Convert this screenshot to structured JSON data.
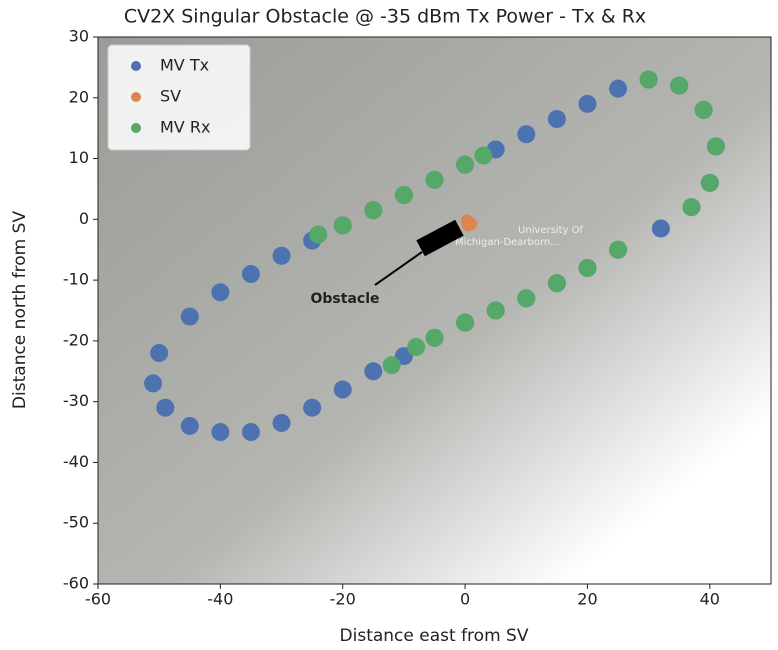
{
  "chart_data": {
    "type": "scatter",
    "title": "CV2X Singular Obstacle @ -35 dBm Tx Power - Tx & Rx",
    "x_label": "Distance east from SV",
    "y_label": "Distance north from SV",
    "annotation": "Obstacle",
    "background_labels": [
      "University Of",
      "Michigan-Dearborn..."
    ],
    "xlim": [
      -60,
      50
    ],
    "xticks": [
      -60,
      -40,
      -20,
      0,
      20,
      40
    ],
    "ylim": [
      -60,
      30
    ],
    "yticks": [
      -60,
      -50,
      -40,
      -30,
      -20,
      -10,
      0,
      10,
      20,
      30
    ],
    "legend": "upper left",
    "series": [
      {
        "name": "MV Tx",
        "color": "#4c72b0",
        "x": [
          -50,
          -45,
          -40,
          -35,
          -30,
          -25,
          -20,
          -15,
          -10,
          -5,
          0,
          5,
          10,
          15,
          20,
          25,
          30,
          35,
          39,
          41,
          40,
          37,
          32,
          25,
          20,
          15,
          10,
          5,
          0,
          -5,
          -10,
          -15,
          -20,
          -25,
          -30,
          -35,
          -40,
          -45,
          -49,
          -51
        ],
        "y": [
          -22,
          -16,
          -12,
          -9,
          -6,
          -3.5,
          -1,
          1.5,
          4,
          6.5,
          9,
          11.5,
          14,
          16.5,
          19,
          21.5,
          23,
          22,
          18,
          12,
          6,
          2,
          -1.5,
          -5,
          -8,
          -10.5,
          -13,
          -15,
          -17,
          -19.5,
          -22.5,
          -25,
          -28,
          -31,
          -33.5,
          -35,
          -35,
          -34,
          -31,
          -27
        ]
      },
      {
        "name": "SV",
        "color": "#dd8452",
        "x": [
          0.3,
          0.8,
          0.5,
          1.0
        ],
        "y": [
          -0.2,
          -0.5,
          -1.0,
          -0.8
        ]
      },
      {
        "name": "MV Rx",
        "color": "#55a868",
        "x": [
          -24,
          -20,
          -15,
          -10,
          -5,
          0,
          3,
          30,
          35,
          39,
          41,
          40,
          37,
          25,
          20,
          15,
          10,
          5,
          0,
          -5,
          -8,
          -12
        ],
        "y": [
          -2.5,
          -1,
          1.5,
          4,
          6.5,
          9,
          10.5,
          23,
          22,
          18,
          12,
          6,
          2,
          -5,
          -8,
          -10.5,
          -13,
          -15,
          -17,
          -19.5,
          -21,
          -24
        ]
      }
    ]
  }
}
